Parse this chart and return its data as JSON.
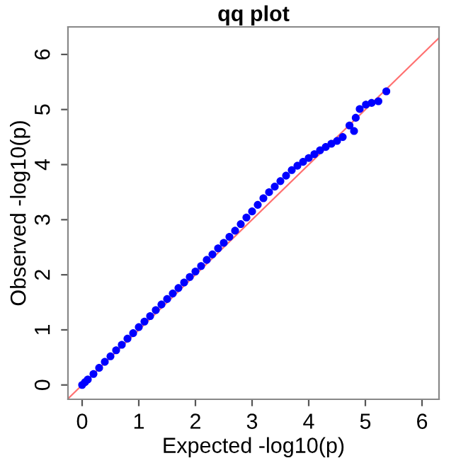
{
  "chart_data": {
    "type": "scatter",
    "title": "qq plot",
    "xlabel": "Expected -log10(p)",
    "ylabel": "Observed -log10(p)",
    "xlim": [
      -0.25,
      6.3
    ],
    "ylim": [
      -0.26,
      6.5
    ],
    "xticks": [
      0,
      1,
      2,
      3,
      4,
      5,
      6
    ],
    "yticks": [
      0,
      1,
      2,
      3,
      4,
      5,
      6
    ],
    "grid": false,
    "series": [
      {
        "type": "line",
        "marker": "none",
        "color": "#ff7070",
        "x": [
          -0.25,
          6.3
        ],
        "values": [
          -0.25,
          6.3
        ]
      },
      {
        "marker": "circle",
        "color": "#0000ff",
        "x": [
          0,
          0.05,
          0.1,
          0.2,
          0.3,
          0.4,
          0.5,
          0.6,
          0.7,
          0.8,
          0.9,
          1.0,
          1.1,
          1.2,
          1.3,
          1.4,
          1.5,
          1.6,
          1.7,
          1.8,
          1.9,
          2.0,
          2.1,
          2.2,
          2.3,
          2.4,
          2.5,
          2.6,
          2.7,
          2.8,
          2.9,
          3.0,
          3.1,
          3.2,
          3.3,
          3.4,
          3.5,
          3.6,
          3.7,
          3.8,
          3.9,
          4.0,
          4.1,
          4.2,
          4.3,
          4.4,
          4.5,
          4.6,
          4.72,
          4.8,
          4.83,
          4.9,
          5.01,
          5.11,
          5.23,
          5.37
        ],
        "values": [
          0,
          0.05,
          0.1,
          0.2,
          0.31,
          0.42,
          0.52,
          0.63,
          0.73,
          0.84,
          0.94,
          1.05,
          1.15,
          1.25,
          1.36,
          1.46,
          1.56,
          1.66,
          1.76,
          1.86,
          1.96,
          2.06,
          2.16,
          2.27,
          2.37,
          2.48,
          2.58,
          2.69,
          2.8,
          2.92,
          3.04,
          3.15,
          3.27,
          3.39,
          3.5,
          3.6,
          3.7,
          3.8,
          3.9,
          3.98,
          4.05,
          4.12,
          4.19,
          4.26,
          4.32,
          4.38,
          4.43,
          4.5,
          4.71,
          4.61,
          4.85,
          5.01,
          5.09,
          5.12,
          5.15,
          5.33
        ]
      }
    ]
  }
}
